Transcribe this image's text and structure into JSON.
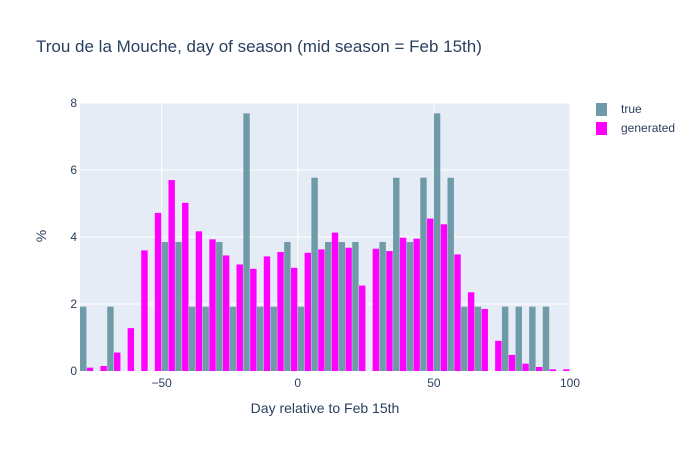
{
  "chart_data": {
    "type": "bar",
    "title": "Trou de la Mouche, day of season (mid season = Feb 15th)",
    "xlabel": "Day relative to Feb 15th",
    "ylabel": "%",
    "xlim": [
      -80,
      100
    ],
    "ylim": [
      0,
      8
    ],
    "xticks": [
      -50,
      0,
      50,
      100
    ],
    "xtick_labels": [
      "−50",
      "0",
      "50",
      "100"
    ],
    "yticks": [
      0,
      2,
      4,
      6,
      8
    ],
    "bin_width": 5,
    "grid": true,
    "legend_position": "top-right",
    "x": [
      -80,
      -75,
      -70,
      -65,
      -60,
      -55,
      -50,
      -45,
      -40,
      -35,
      -30,
      -25,
      -20,
      -15,
      -10,
      -5,
      0,
      5,
      10,
      15,
      20,
      25,
      30,
      35,
      40,
      45,
      50,
      55,
      60,
      65,
      70,
      75,
      80,
      85,
      90,
      95
    ],
    "series": [
      {
        "name": "true",
        "color": "#6f9aa8",
        "values": [
          1.92,
          0,
          1.92,
          0,
          0,
          0,
          3.85,
          3.85,
          1.92,
          1.92,
          3.85,
          1.92,
          7.69,
          1.92,
          1.92,
          3.85,
          1.92,
          5.77,
          3.85,
          3.85,
          3.85,
          0,
          3.85,
          5.77,
          3.85,
          5.77,
          7.69,
          5.77,
          1.92,
          1.92,
          0,
          1.92,
          1.92,
          1.92,
          1.92,
          0
        ]
      },
      {
        "name": "generated",
        "color": "#ff00ff",
        "values": [
          0.1,
          0.15,
          0.55,
          1.28,
          3.6,
          4.72,
          5.7,
          5.02,
          4.17,
          3.93,
          3.45,
          3.18,
          3.05,
          3.42,
          3.55,
          3.08,
          3.53,
          3.63,
          4.13,
          3.68,
          2.55,
          3.65,
          3.58,
          3.98,
          3.95,
          4.55,
          4.38,
          3.48,
          2.35,
          1.85,
          0.9,
          0.48,
          0.22,
          0.12,
          0.05,
          0.05
        ]
      }
    ]
  }
}
